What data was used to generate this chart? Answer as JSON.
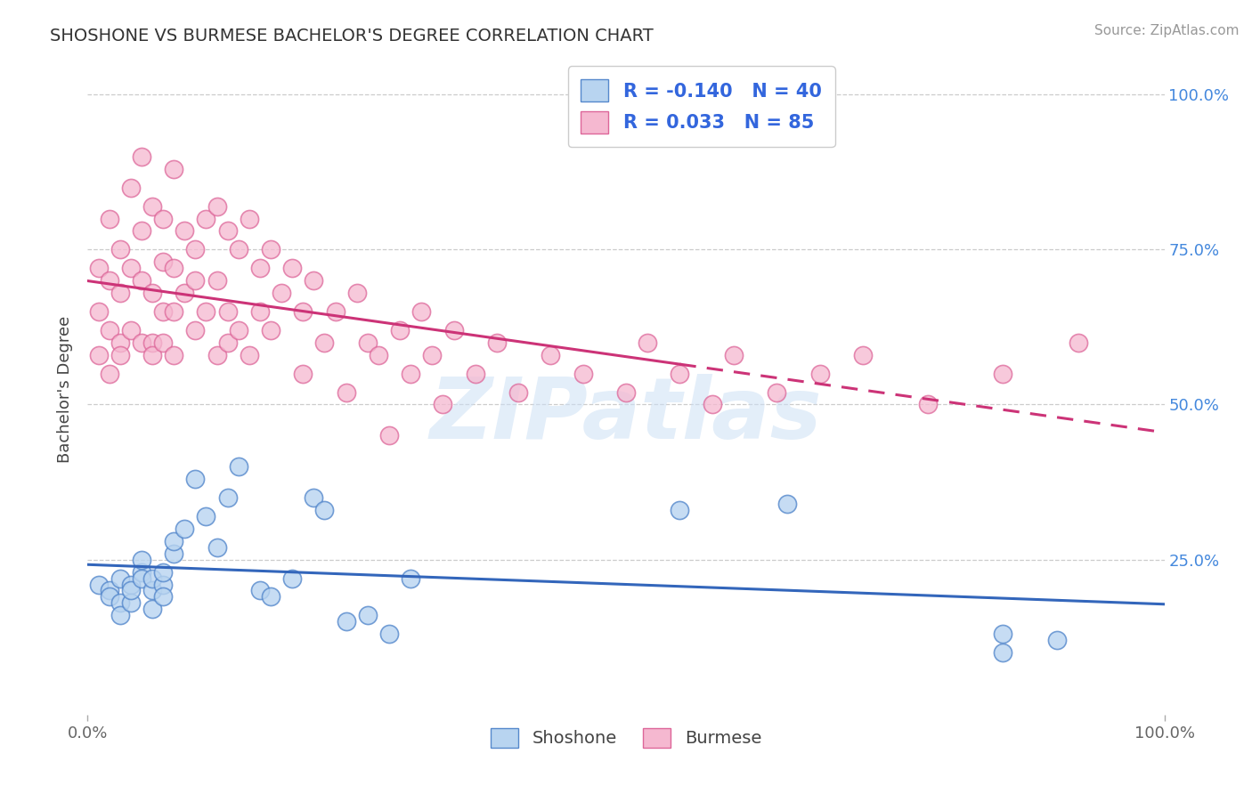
{
  "title": "SHOSHONE VS BURMESE BACHELOR'S DEGREE CORRELATION CHART",
  "source_text": "Source: ZipAtlas.com",
  "ylabel": "Bachelor's Degree",
  "xlim": [
    0.0,
    1.0
  ],
  "ylim": [
    0.0,
    1.05
  ],
  "x_tick_labels": [
    "0.0%",
    "100.0%"
  ],
  "y_ticks": [
    0.25,
    0.5,
    0.75,
    1.0
  ],
  "y_tick_labels": [
    "25.0%",
    "50.0%",
    "75.0%",
    "100.0%"
  ],
  "shoshone_R": -0.14,
  "shoshone_N": 40,
  "burmese_R": 0.033,
  "burmese_N": 85,
  "shoshone_fill": "#b8d4f0",
  "burmese_fill": "#f5b8d0",
  "shoshone_edge": "#5588cc",
  "burmese_edge": "#dd6699",
  "shoshone_line": "#3366bb",
  "burmese_line": "#cc3377",
  "rv_color": "#3366dd",
  "background": "#ffffff",
  "grid_color": "#cccccc",
  "watermark": "ZIPatlas",
  "watermark_color": "#cce0f5",
  "title_color": "#333333",
  "label_color": "#666666",
  "right_tick_color": "#4488dd",
  "shoshone_x": [
    0.01,
    0.02,
    0.02,
    0.03,
    0.03,
    0.03,
    0.04,
    0.04,
    0.04,
    0.05,
    0.05,
    0.05,
    0.06,
    0.06,
    0.06,
    0.07,
    0.07,
    0.07,
    0.08,
    0.08,
    0.09,
    0.1,
    0.11,
    0.12,
    0.13,
    0.14,
    0.16,
    0.17,
    0.19,
    0.21,
    0.22,
    0.24,
    0.26,
    0.28,
    0.3,
    0.55,
    0.65,
    0.85,
    0.85,
    0.9
  ],
  "shoshone_y": [
    0.21,
    0.2,
    0.19,
    0.22,
    0.18,
    0.16,
    0.21,
    0.18,
    0.2,
    0.23,
    0.22,
    0.25,
    0.2,
    0.17,
    0.22,
    0.21,
    0.19,
    0.23,
    0.26,
    0.28,
    0.3,
    0.38,
    0.32,
    0.27,
    0.35,
    0.4,
    0.2,
    0.19,
    0.22,
    0.35,
    0.33,
    0.15,
    0.16,
    0.13,
    0.22,
    0.33,
    0.34,
    0.1,
    0.13,
    0.12
  ],
  "burmese_x": [
    0.01,
    0.01,
    0.01,
    0.02,
    0.02,
    0.02,
    0.02,
    0.03,
    0.03,
    0.03,
    0.03,
    0.04,
    0.04,
    0.04,
    0.05,
    0.05,
    0.05,
    0.05,
    0.06,
    0.06,
    0.06,
    0.06,
    0.07,
    0.07,
    0.07,
    0.07,
    0.08,
    0.08,
    0.08,
    0.08,
    0.09,
    0.09,
    0.1,
    0.1,
    0.1,
    0.11,
    0.11,
    0.12,
    0.12,
    0.12,
    0.13,
    0.13,
    0.13,
    0.14,
    0.14,
    0.15,
    0.15,
    0.16,
    0.16,
    0.17,
    0.17,
    0.18,
    0.19,
    0.2,
    0.2,
    0.21,
    0.22,
    0.23,
    0.24,
    0.25,
    0.26,
    0.27,
    0.28,
    0.29,
    0.3,
    0.31,
    0.32,
    0.33,
    0.34,
    0.36,
    0.38,
    0.4,
    0.43,
    0.46,
    0.5,
    0.52,
    0.55,
    0.58,
    0.6,
    0.64,
    0.68,
    0.72,
    0.78,
    0.85,
    0.92
  ],
  "burmese_y": [
    0.58,
    0.65,
    0.72,
    0.8,
    0.62,
    0.55,
    0.7,
    0.68,
    0.75,
    0.6,
    0.58,
    0.85,
    0.72,
    0.62,
    0.9,
    0.7,
    0.78,
    0.6,
    0.82,
    0.68,
    0.6,
    0.58,
    0.8,
    0.73,
    0.65,
    0.6,
    0.88,
    0.72,
    0.65,
    0.58,
    0.78,
    0.68,
    0.75,
    0.7,
    0.62,
    0.8,
    0.65,
    0.82,
    0.7,
    0.58,
    0.78,
    0.65,
    0.6,
    0.75,
    0.62,
    0.8,
    0.58,
    0.72,
    0.65,
    0.75,
    0.62,
    0.68,
    0.72,
    0.65,
    0.55,
    0.7,
    0.6,
    0.65,
    0.52,
    0.68,
    0.6,
    0.58,
    0.45,
    0.62,
    0.55,
    0.65,
    0.58,
    0.5,
    0.62,
    0.55,
    0.6,
    0.52,
    0.58,
    0.55,
    0.52,
    0.6,
    0.55,
    0.5,
    0.58,
    0.52,
    0.55,
    0.58,
    0.5,
    0.55,
    0.6
  ]
}
